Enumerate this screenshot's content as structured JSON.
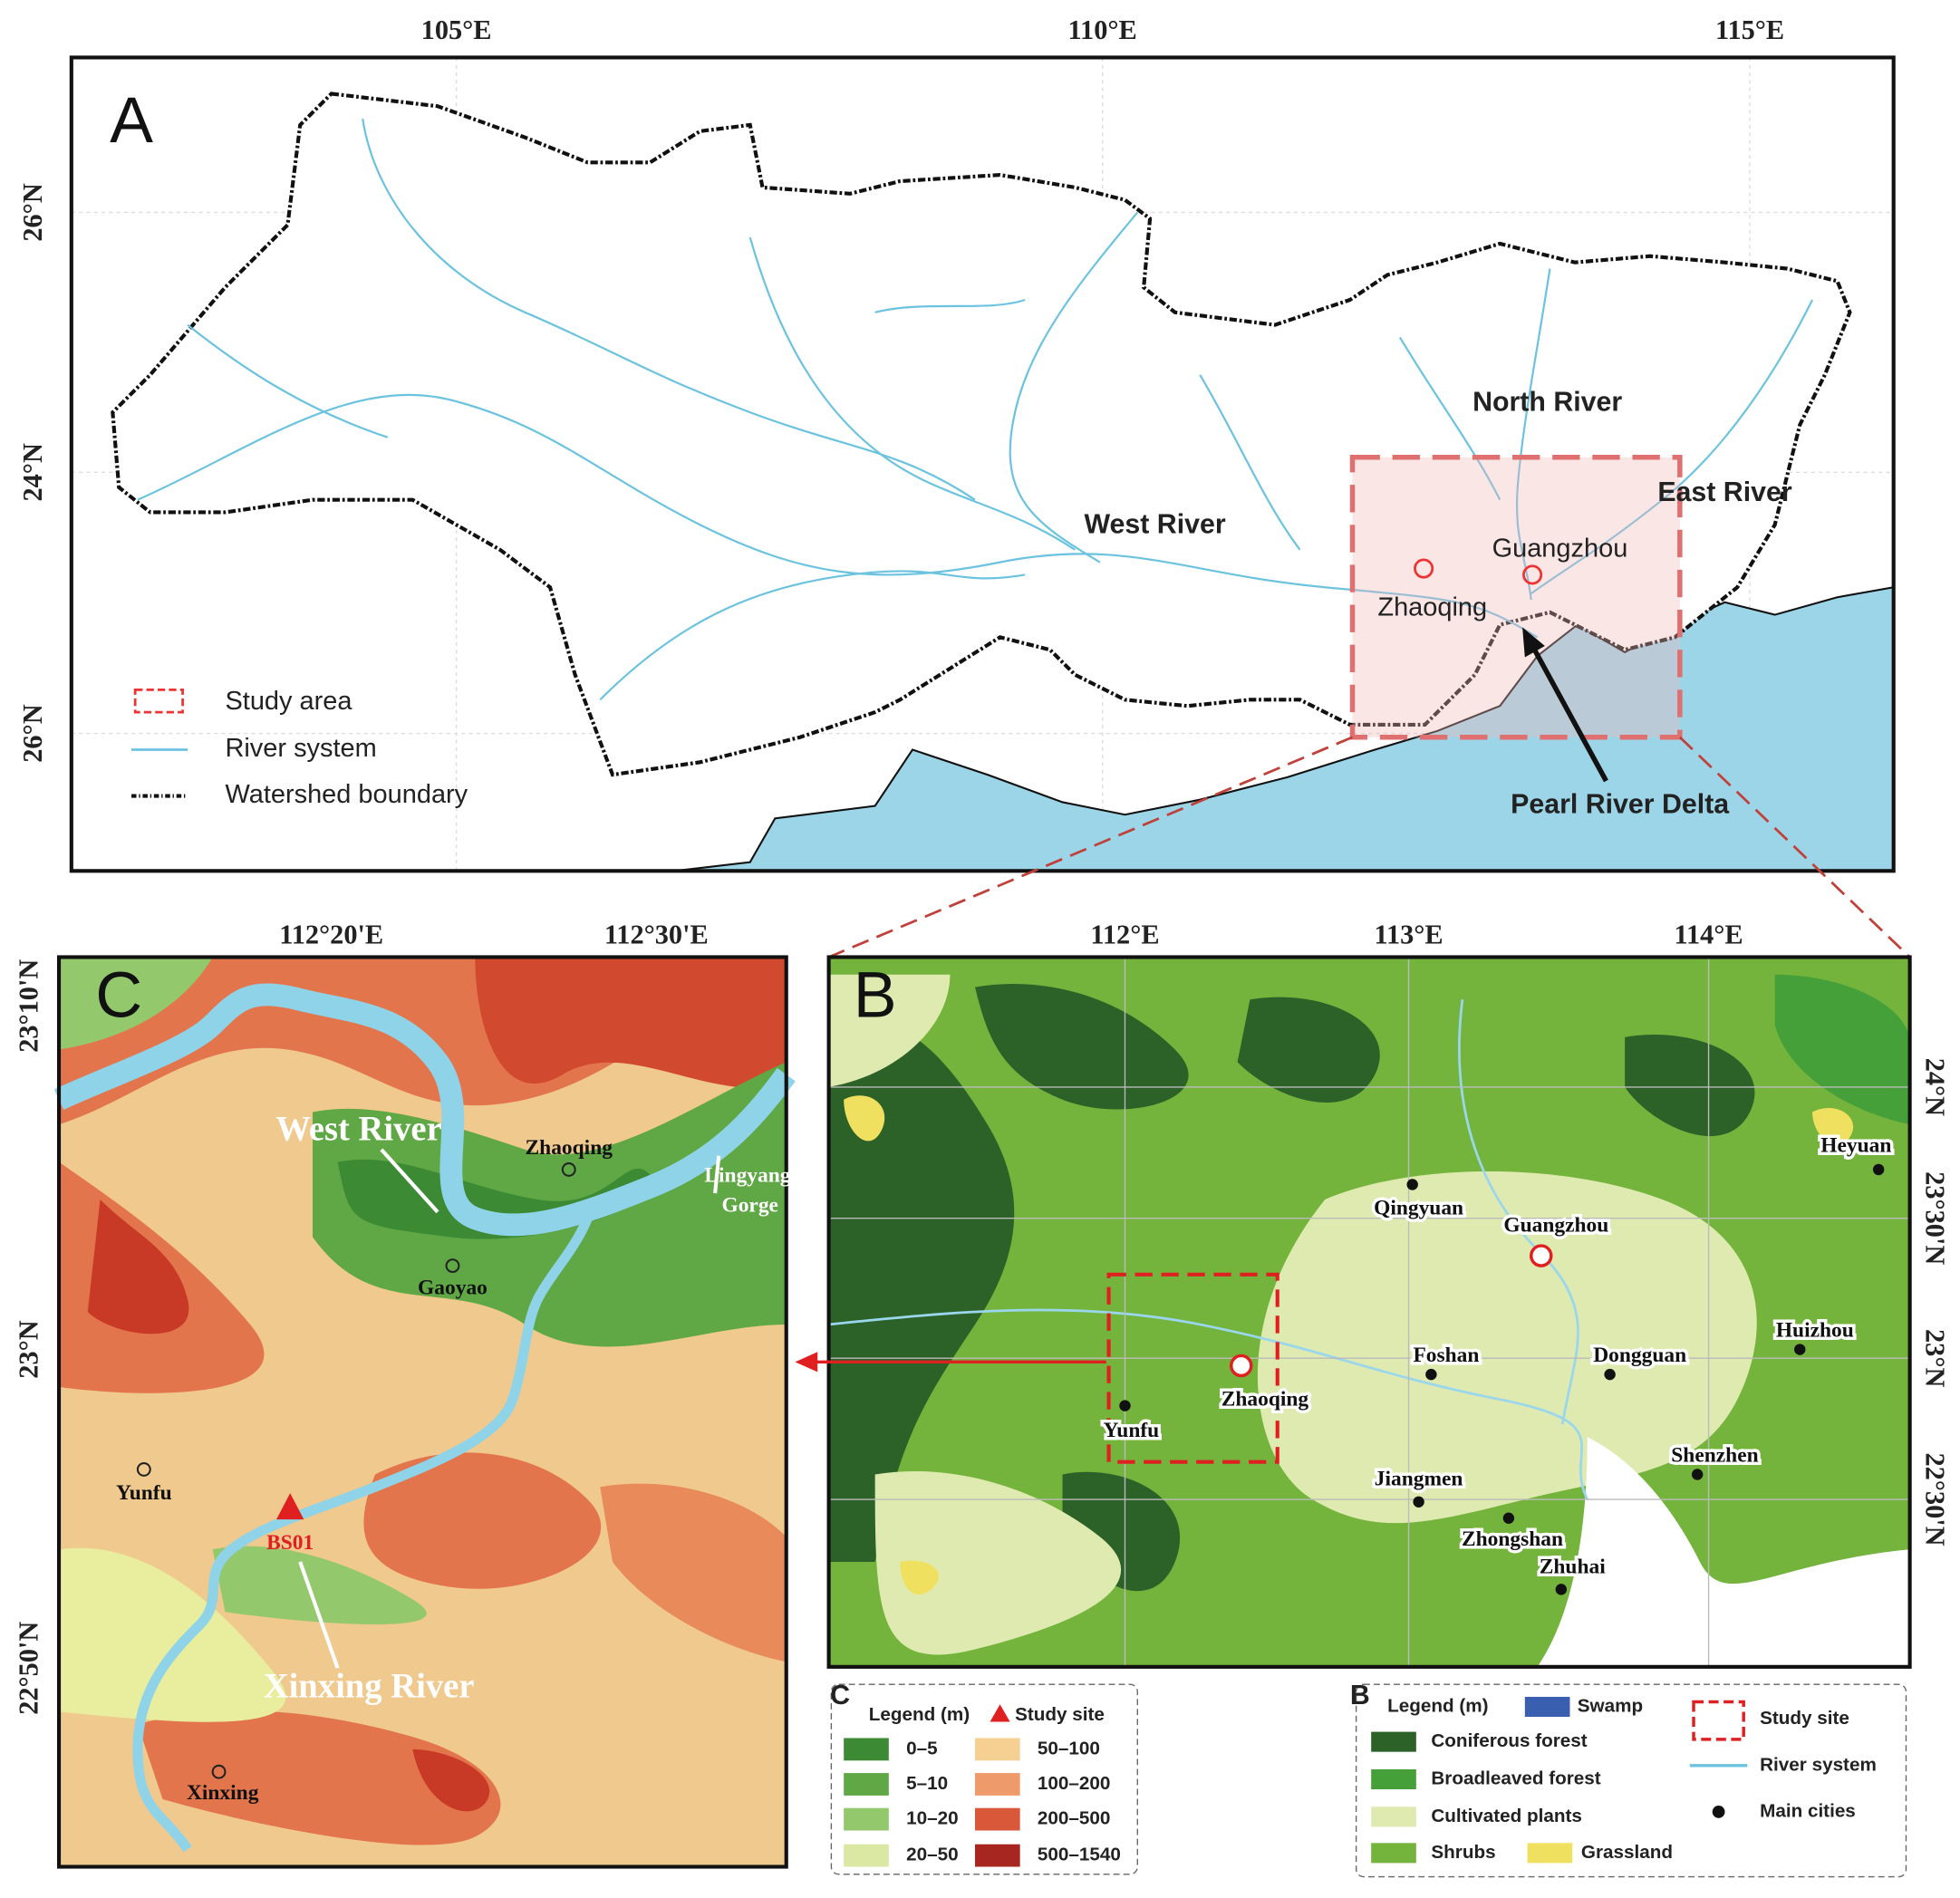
{
  "panel_a": {
    "label": "A",
    "lon_ticks": [
      "105°E",
      "110°E",
      "115°E"
    ],
    "lat_ticks": [
      "26°N",
      "24°N",
      "26°N"
    ],
    "rivers": [
      "North River",
      "East River",
      "West River"
    ],
    "cities": [
      "Guangzhou",
      "Zhaoqing"
    ],
    "callout": "Pearl River Delta",
    "legend": [
      "Study area",
      "River system",
      "Watershed boundary"
    ]
  },
  "panel_b": {
    "label": "B",
    "lon_ticks": [
      "112°E",
      "113°E",
      "114°E"
    ],
    "lat_ticks": [
      "24°N",
      "23°30'N",
      "23°N",
      "22°30'N"
    ],
    "cities": [
      "Heyuan",
      "Qingyuan",
      "Guangzhou",
      "Huizhou",
      "Foshan",
      "Dongguan",
      "Zhaoqing",
      "Yunfu",
      "Jiangmen",
      "Shenzhen",
      "Zhongshan",
      "Zhuhai"
    ]
  },
  "panel_c": {
    "label": "C",
    "lon_ticks": [
      "112°20'E",
      "112°30'E"
    ],
    "lat_ticks": [
      "23°10'N",
      "23°N",
      "22°50'N"
    ],
    "rivers": [
      "West  River",
      "Xinxing River"
    ],
    "places": [
      "Zhaoqing",
      "Gaoyao",
      "Yunfu",
      "Xinxing"
    ],
    "gorge": [
      "Lingyang",
      "Gorge"
    ],
    "site": "BS01"
  },
  "legend_c": {
    "label": "C",
    "title": "Legend (m)",
    "site": "Study site",
    "classes": [
      {
        "label": "0–5",
        "color": "#3d8a35"
      },
      {
        "label": "5–10",
        "color": "#5fa845"
      },
      {
        "label": "10–20",
        "color": "#93c86d"
      },
      {
        "label": "20–50",
        "color": "#dbe8a4"
      },
      {
        "label": "50–100",
        "color": "#f6cf92"
      },
      {
        "label": "100–200",
        "color": "#ef9a6a"
      },
      {
        "label": "200–500",
        "color": "#d9583a"
      },
      {
        "label": "500–1540",
        "color": "#a82620"
      }
    ]
  },
  "legend_b": {
    "label": "B",
    "title": "Legend (m)",
    "classes": [
      {
        "label": "Swamp",
        "color": "#3a5fb0"
      },
      {
        "label": "Coniferous forest",
        "color": "#2c6128"
      },
      {
        "label": "Broadleaved forest",
        "color": "#45a03a"
      },
      {
        "label": "Cultivated plants",
        "color": "#dfeab0"
      },
      {
        "label": "Shrubs",
        "color": "#74b43c"
      },
      {
        "label": "Grassland",
        "color": "#f0e060"
      }
    ],
    "symbols": [
      "Study site",
      "River system",
      "Main cities"
    ]
  }
}
